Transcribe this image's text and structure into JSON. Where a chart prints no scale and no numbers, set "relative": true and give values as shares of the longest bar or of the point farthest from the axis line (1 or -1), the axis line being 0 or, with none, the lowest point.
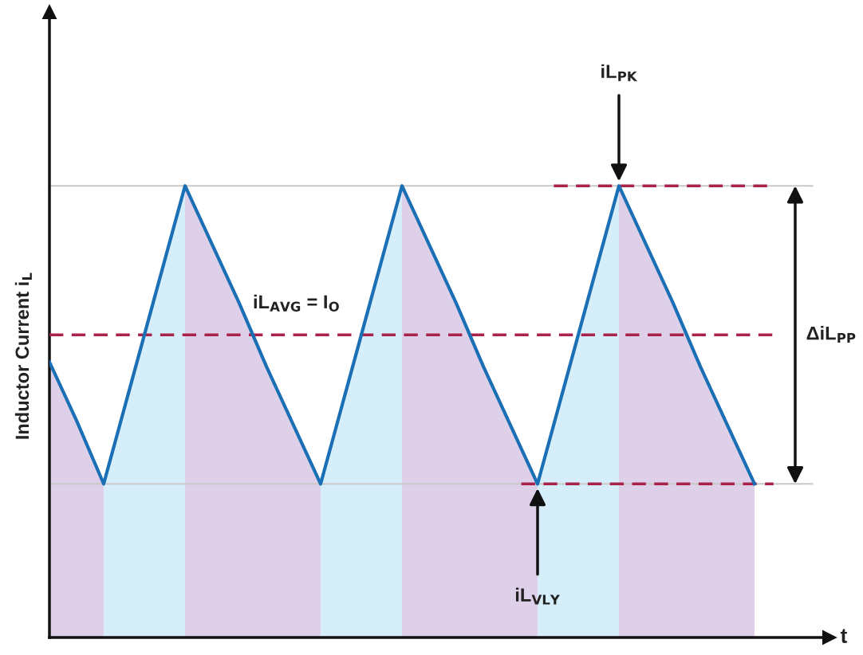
{
  "chart_data": {
    "type": "line",
    "relative": true,
    "ylabel": "Inductor Current i$_{L}$",
    "xlabel": "t",
    "categories": [
      null,
      null,
      null,
      null,
      null,
      null,
      null,
      null,
      null,
      null,
      null,
      null,
      null,
      null,
      null,
      null,
      null,
      null,
      null,
      null,
      null,
      null,
      null,
      null,
      null,
      null,
      null
    ],
    "series": [
      {
        "type": "area",
        "color": "#ddd0e8",
        "values": [
          0.61,
          0.48,
          0.34,
          null,
          null,
          null,
          null,
          null,
          null,
          null,
          null,
          null,
          null,
          null,
          null,
          null,
          null,
          null,
          null,
          null,
          null,
          null,
          null,
          null,
          null,
          null,
          null
        ]
      },
      {
        "type": "area",
        "color": "#d6eefa",
        "values": [
          null,
          null,
          0.34,
          0.56,
          0.78,
          1,
          null,
          null,
          null,
          null,
          null,
          null,
          null,
          null,
          null,
          null,
          null,
          null,
          null,
          null,
          null,
          null,
          null,
          null,
          null,
          null,
          null
        ]
      },
      {
        "type": "area",
        "color": "#ddd0e8",
        "values": [
          null,
          null,
          null,
          null,
          null,
          1,
          0.87,
          0.74,
          0.6,
          0.47,
          0.34,
          null,
          null,
          null,
          null,
          null,
          null,
          null,
          null,
          null,
          null,
          null,
          null,
          null,
          null,
          null,
          null
        ]
      },
      {
        "type": "area",
        "color": "#d6eefa",
        "values": [
          null,
          null,
          null,
          null,
          null,
          null,
          null,
          null,
          null,
          null,
          0.34,
          0.56,
          0.78,
          1,
          null,
          null,
          null,
          null,
          null,
          null,
          null,
          null,
          null,
          null,
          null,
          null,
          null
        ]
      },
      {
        "type": "area",
        "color": "#ddd0e8",
        "values": [
          null,
          null,
          null,
          null,
          null,
          null,
          null,
          null,
          null,
          null,
          null,
          null,
          null,
          1,
          0.87,
          0.74,
          0.6,
          0.47,
          0.34,
          null,
          null,
          null,
          null,
          null,
          null,
          null,
          null
        ]
      },
      {
        "type": "area",
        "color": "#d6eefa",
        "values": [
          null,
          null,
          null,
          null,
          null,
          null,
          null,
          null,
          null,
          null,
          null,
          null,
          null,
          null,
          null,
          null,
          null,
          null,
          0.34,
          0.56,
          0.78,
          1,
          null,
          null,
          null,
          null,
          null
        ]
      },
      {
        "type": "area",
        "color": "#ddd0e8",
        "values": [
          null,
          null,
          null,
          null,
          null,
          null,
          null,
          null,
          null,
          null,
          null,
          null,
          null,
          null,
          null,
          null,
          null,
          null,
          null,
          null,
          null,
          1,
          0.87,
          0.74,
          0.6,
          0.47,
          0.34
        ]
      },
      {
        "color": "#1a6fb5",
        "values": [
          0.61,
          0.48,
          0.34,
          0.56,
          0.78,
          1,
          0.87,
          0.74,
          0.6,
          0.47,
          0.34,
          0.56,
          0.78,
          1,
          0.87,
          0.74,
          0.6,
          0.47,
          0.34,
          0.56,
          0.78,
          1,
          0.87,
          0.74,
          0.6,
          0.47,
          0.34
        ]
      }
    ],
    "ref_lines": [
      {
        "axis": "y",
        "value": 1,
        "label": null,
        "color": "#c8c8c8",
        "line_style": "solid"
      },
      {
        "axis": "y",
        "value": 0.34,
        "label": null,
        "color": "#c8c8c8",
        "line_style": "solid"
      },
      {
        "axis": "y",
        "value": 1,
        "label": null,
        "color": "#a8224a",
        "line_style": "dashed"
      },
      {
        "axis": "y",
        "value": 0.67,
        "label": "iL$_{AVG}$ = I$_{O}$",
        "color": "#a8224a",
        "line_style": "dashed"
      },
      {
        "axis": "y",
        "value": 0.34,
        "label": null,
        "color": "#a8224a",
        "line_style": "dashed"
      }
    ],
    "annotations": [
      "iL$_{PK}$",
      "iL$_{VLY}$",
      "ΔiL$_{PP}$"
    ]
  }
}
